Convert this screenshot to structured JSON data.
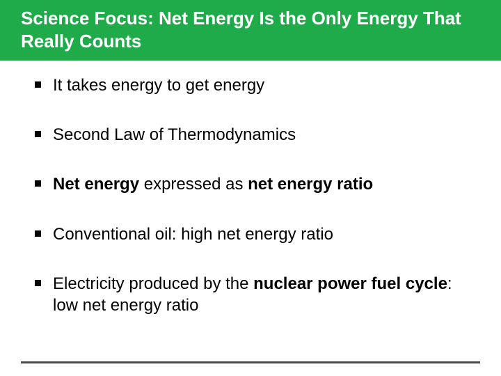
{
  "header": {
    "title": "Science Focus: Net Energy Is the Only Energy That Really Counts",
    "background_color": "#1fab4a",
    "text_color": "#ffffff",
    "font_size": 26,
    "font_weight": "bold"
  },
  "bullets": {
    "font_size": 24,
    "text_color": "#000000",
    "marker_shape": "square",
    "marker_color": "#000000",
    "items": [
      {
        "segments": [
          {
            "text": "It takes energy to get energy",
            "bold": false
          }
        ]
      },
      {
        "segments": [
          {
            "text": "Second Law of Thermodynamics",
            "bold": false
          }
        ]
      },
      {
        "segments": [
          {
            "text": "Net energy",
            "bold": true
          },
          {
            "text": " expressed as ",
            "bold": false
          },
          {
            "text": "net energy ratio",
            "bold": true
          }
        ]
      },
      {
        "segments": [
          {
            "text": "Conventional oil: high net energy ratio",
            "bold": false
          }
        ]
      },
      {
        "segments": [
          {
            "text": "Electricity produced by the ",
            "bold": false
          },
          {
            "text": "nuclear power fuel cycle",
            "bold": true
          },
          {
            "text": ": low net energy ratio",
            "bold": false
          }
        ]
      }
    ]
  },
  "footer_line_color": "#4a4a4a"
}
